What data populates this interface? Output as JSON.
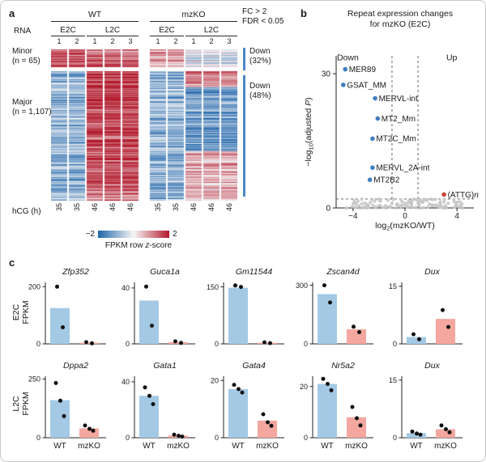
{
  "panel_a": {
    "label": "a",
    "genotypes": [
      "WT",
      "mzKO"
    ],
    "stages": [
      "E2C",
      "L2C"
    ],
    "rna_label": "RNA",
    "rep_numbers": [
      "1",
      "2",
      "1",
      "2",
      "3",
      "1",
      "2",
      "1",
      "2",
      "3"
    ],
    "minor_label": "Minor",
    "minor_n": "(n = 65)",
    "major_label": "Major",
    "major_n": "(n = 1,107)",
    "hcg_label": "hCG (h)",
    "hcg_values": [
      "35",
      "35",
      "46",
      "46",
      "46",
      "35",
      "35",
      "46",
      "46",
      "46"
    ],
    "fc_line1": "FC > 2",
    "fc_line2": "FDR < 0.05",
    "down_minor_line1": "Down",
    "down_minor_line2": "(32%)",
    "down_major_line1": "Down",
    "down_major_line2": "(48%)",
    "down_bar_color": "#4d86c6",
    "colorbar": {
      "min_label": "−2",
      "max_label": "2",
      "caption_pre": "FPKM row ",
      "caption_italic": "z",
      "caption_post": "-score"
    }
  },
  "panel_b": {
    "label": "b",
    "title_line1": "Repeat expression changes",
    "title_line2": "for mzKO (E2C)"
  },
  "panel_c": {
    "label": "c",
    "row1_label_lines": [
      "E2C",
      "FPKM"
    ],
    "row2_label_lines": [
      "L2C",
      "FPKM"
    ],
    "wt_color": "#a3c9e5",
    "mzko_color": "#f3a79f",
    "dot_color": "#111111"
  },
  "chart_data": [
    {
      "type": "heatmap",
      "name": "rna-zscore-heatmap",
      "columns": [
        "WT E2C 1",
        "WT E2C 2",
        "WT L2C 1",
        "WT L2C 2",
        "WT L2C 3",
        "mzKO E2C 1",
        "mzKO E2C 2",
        "mzKO L2C 1",
        "mzKO L2C 2",
        "mzKO L2C 3"
      ],
      "row_groups": [
        {
          "name": "Minor",
          "n": 65
        },
        {
          "name": "Major",
          "n": 1107
        }
      ],
      "zlim": [
        -2,
        2
      ],
      "colors": {
        "neg": "#2166ac",
        "mid": "#f6f6f6",
        "pos": "#b2182b"
      },
      "pattern": {
        "seed": 42,
        "noise_row": 0.55,
        "noise_cell": 0.3,
        "minor_means": [
          1.2,
          1.05,
          0.6,
          -0.25
        ],
        "major_means": {
          "wt_e2c": -0.7,
          "wt_l2c_top": 1.4,
          "wt_l2c_slope": -0.4,
          "ko_e2c": -0.75,
          "ko_l2c_segments": [
            {
              "until": 0.12,
              "mean": 0.7
            },
            {
              "until": 0.62,
              "mean": -1.0
            },
            {
              "until": 1.0,
              "mean": 0.55
            }
          ]
        }
      }
    },
    {
      "type": "scatter",
      "name": "repeat-volcano",
      "title": "Repeat expression changes for mzKO (E2C)",
      "xlabel_parts": [
        {
          "t": "log"
        },
        {
          "t": "2",
          "sub": true
        },
        {
          "t": "(mzKO/WT)"
        }
      ],
      "ylabel_parts": [
        {
          "t": "−log"
        },
        {
          "t": "10",
          "sub": true
        },
        {
          "t": "(adjusted "
        },
        {
          "t": "P",
          "italic": true
        },
        {
          "t": ")"
        }
      ],
      "xlim": [
        -5.3,
        5.3
      ],
      "ylim": [
        0,
        34
      ],
      "xticks": [
        {
          "v": -4,
          "label": "−4"
        },
        {
          "v": 0,
          "label": "0"
        },
        {
          "v": 4,
          "label": "4"
        }
      ],
      "yticks": [
        {
          "v": 0,
          "label": "0"
        },
        {
          "v": 30,
          "label": "30"
        }
      ],
      "threshold_x": [
        -1,
        1
      ],
      "threshold_y": 2,
      "annotations": [
        {
          "text": "Down",
          "x": -4.4,
          "y": 33
        },
        {
          "text": "Up",
          "x": 3.6,
          "y": 33
        }
      ],
      "labeled_points": [
        {
          "name": "MER89",
          "x": -4.6,
          "y": 31,
          "color": "#3f7fc1"
        },
        {
          "name": "GSAT_MM",
          "x": -4.75,
          "y": 27.5,
          "color": "#3f7fc1"
        },
        {
          "name": "MERVL-int",
          "x": -2.3,
          "y": 24.5,
          "color": "#3f7fc1"
        },
        {
          "name": "MT2_Mm",
          "x": -2.1,
          "y": 20,
          "color": "#3f7fc1"
        },
        {
          "name": "MT2C_Mm",
          "x": -2.5,
          "y": 15.5,
          "color": "#3f7fc1"
        },
        {
          "name": "MERVL_2A-int",
          "x": -2.5,
          "y": 9,
          "color": "#3f7fc1"
        },
        {
          "name": "MT2B2",
          "x": -2.7,
          "y": 6.3,
          "color": "#3f7fc1"
        },
        {
          "name": "(ATTG)n",
          "x": 3.0,
          "y": 3,
          "color": "#c8463c",
          "label_parts": [
            {
              "t": "(ATTG)"
            },
            {
              "t": "n",
              "italic": true
            }
          ]
        }
      ],
      "background_points": {
        "count": 130,
        "x_range": [
          -4.6,
          4.6
        ],
        "y_max": 2.0,
        "color": "#c7c7c7",
        "seed": 7
      }
    },
    {
      "type": "bar",
      "row": "E2C",
      "title": "Zfp352",
      "categories": [
        "WT",
        "mzKO"
      ],
      "values": [
        125,
        4
      ],
      "replicate_points": [
        [
          200,
          58
        ],
        [
          6,
          2
        ]
      ],
      "yticks": [
        0,
        200
      ],
      "ymax": 215,
      "show_xlabels": false
    },
    {
      "type": "bar",
      "row": "E2C",
      "title": "Guca1a",
      "categories": [
        "WT",
        "mzKO"
      ],
      "values": [
        31,
        1.2
      ],
      "replicate_points": [
        [
          41,
          13
        ],
        [
          1.8,
          0.7
        ]
      ],
      "yticks": [
        0,
        40
      ],
      "ymax": 44,
      "show_xlabels": false
    },
    {
      "type": "bar",
      "row": "E2C",
      "title": "Gm11544",
      "categories": [
        "WT",
        "mzKO"
      ],
      "values": [
        148,
        3
      ],
      "replicate_points": [
        [
          154,
          150
        ],
        [
          4,
          2
        ]
      ],
      "yticks": [
        0,
        150
      ],
      "ymax": 162,
      "show_xlabels": false
    },
    {
      "type": "bar",
      "row": "E2C",
      "title": "Zscan4d",
      "categories": [
        "WT",
        "mzKO"
      ],
      "values": [
        255,
        75
      ],
      "replicate_points": [
        [
          300,
          212
        ],
        [
          88,
          60
        ]
      ],
      "yticks": [
        0,
        300
      ],
      "ymax": 315,
      "show_xlabels": false
    },
    {
      "type": "bar",
      "row": "E2C",
      "title": "Dux",
      "categories": [
        "WT",
        "mzKO"
      ],
      "values": [
        1.8,
        6.5
      ],
      "replicate_points": [
        [
          2.5,
          1.2
        ],
        [
          8.8,
          4.4
        ]
      ],
      "yticks": [
        0,
        15
      ],
      "ymax": 16,
      "show_xlabels": false
    },
    {
      "type": "bar",
      "row": "L2C",
      "title": "Dppa2",
      "categories": [
        "WT",
        "mzKO"
      ],
      "values": [
        160,
        40
      ],
      "replicate_points": [
        [
          233,
          158,
          92
        ],
        [
          52,
          38,
          30
        ]
      ],
      "yticks": [
        0,
        250
      ],
      "ymax": 262,
      "show_xlabels": true
    },
    {
      "type": "bar",
      "row": "L2C",
      "title": "Gata1",
      "categories": [
        "WT",
        "mzKO"
      ],
      "values": [
        30,
        1.5
      ],
      "replicate_points": [
        [
          36,
          30,
          24
        ],
        [
          2.2,
          1.4,
          0.8
        ]
      ],
      "yticks": [
        0,
        40
      ],
      "ymax": 44,
      "show_xlabels": true
    },
    {
      "type": "bar",
      "row": "L2C",
      "title": "Gata4",
      "categories": [
        "WT",
        "mzKO"
      ],
      "values": [
        17,
        6
      ],
      "replicate_points": [
        [
          18.5,
          17,
          15.8
        ],
        [
          8.2,
          5.4,
          4.2
        ]
      ],
      "yticks": [
        0,
        20
      ],
      "ymax": 21.5,
      "show_xlabels": true
    },
    {
      "type": "bar",
      "row": "L2C",
      "title": "Nr5a2",
      "categories": [
        "WT",
        "mzKO"
      ],
      "values": [
        21,
        8
      ],
      "replicate_points": [
        [
          23,
          21,
          18.5
        ],
        [
          12,
          7.6,
          4.8
        ]
      ],
      "yticks": [
        0,
        20
      ],
      "ymax": 24,
      "show_xlabels": true
    },
    {
      "type": "bar",
      "row": "L2C",
      "title": "Dux",
      "categories": [
        "WT",
        "mzKO"
      ],
      "values": [
        1.2,
        2.2
      ],
      "replicate_points": [
        [
          1.6,
          1.1,
          0.8
        ],
        [
          3.2,
          2.2,
          1.4
        ]
      ],
      "yticks": [
        0,
        15
      ],
      "ymax": 16,
      "show_xlabels": true
    }
  ]
}
